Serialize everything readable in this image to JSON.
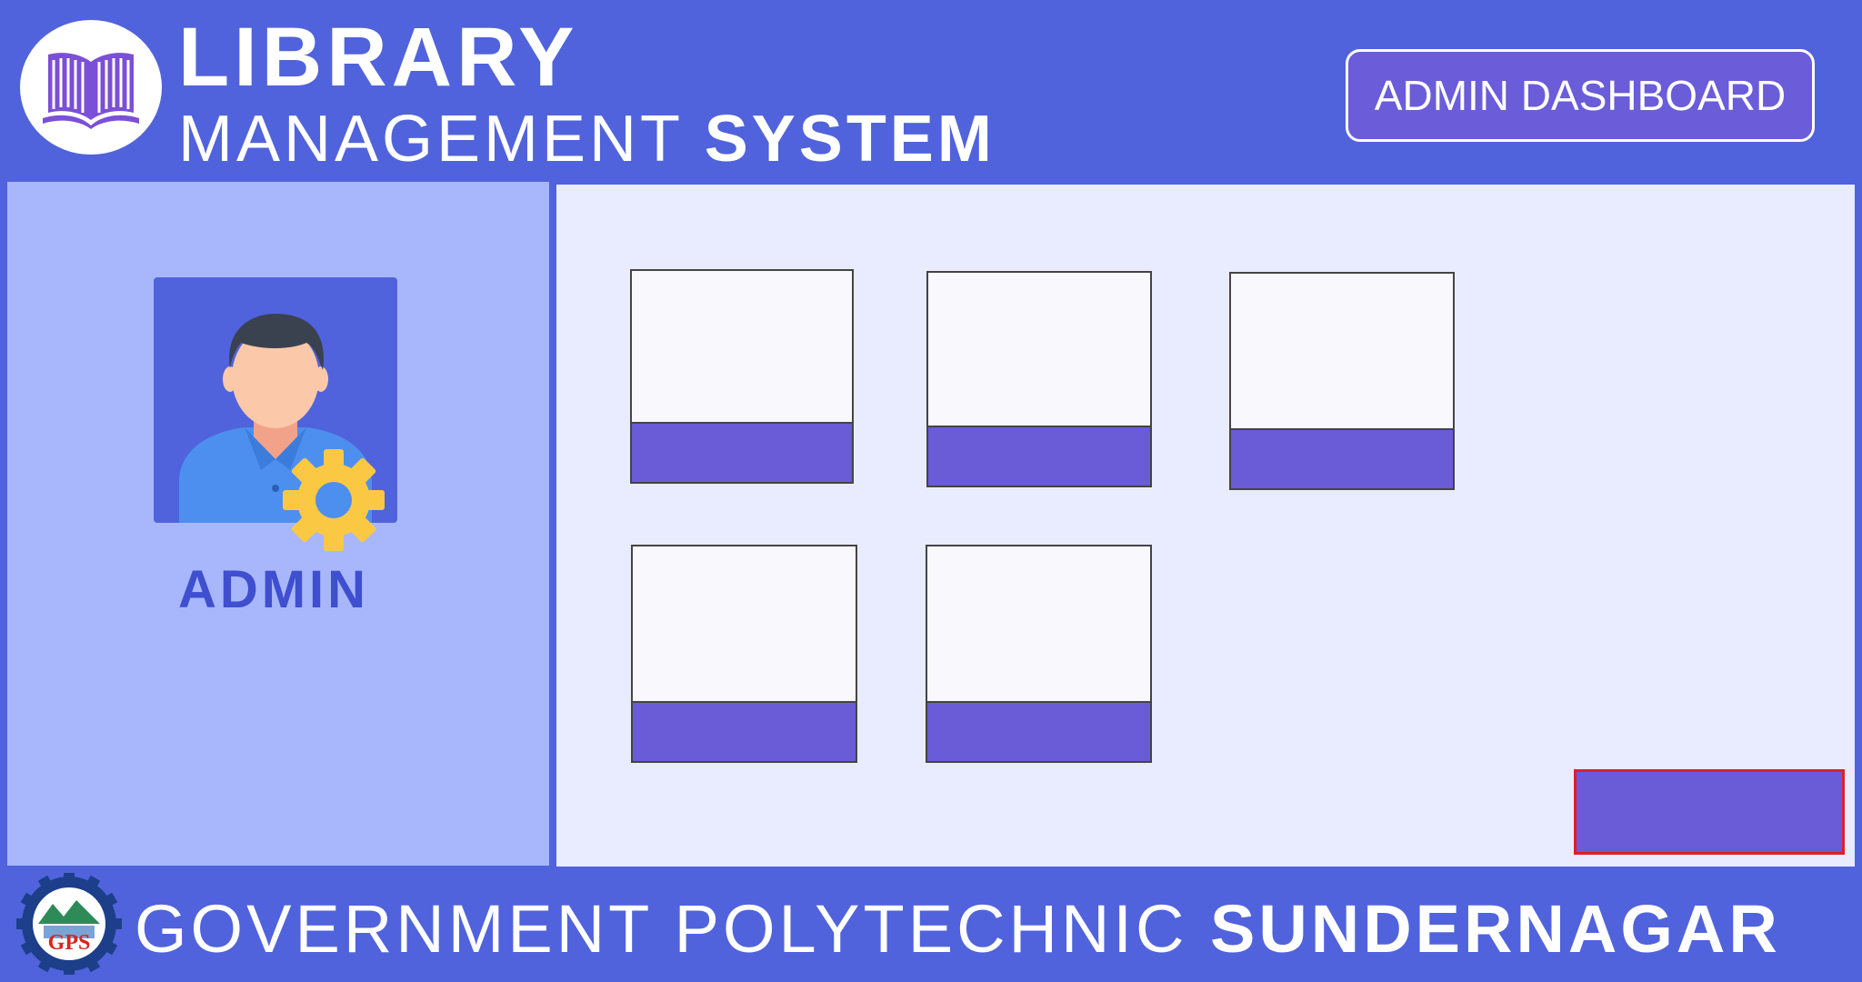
{
  "header": {
    "title_line1": "LIBRARY",
    "title_line2_part1": "MANAGEMENT",
    "title_line2_part2": "SYSTEM",
    "admin_dashboard_label": "ADMIN DASHBOARD"
  },
  "sidebar": {
    "role_label": "ADMIN",
    "avatar_icon": "admin-user-gear-icon"
  },
  "main": {
    "tiles": [
      "tile-1",
      "tile-2",
      "tile-3",
      "tile-4",
      "tile-5"
    ]
  },
  "footer": {
    "institution_part1": "GOVERNMENT POLYTECHNIC",
    "institution_part2": "SUNDERNAGAR",
    "logo_text": "GPS"
  },
  "colors": {
    "brand_blue": "#5063dc",
    "sidebar_bg": "#a8b7fc",
    "content_bg": "#e9ecff",
    "tile_bar": "#6a5bd6",
    "action_border": "#e01e2a"
  }
}
